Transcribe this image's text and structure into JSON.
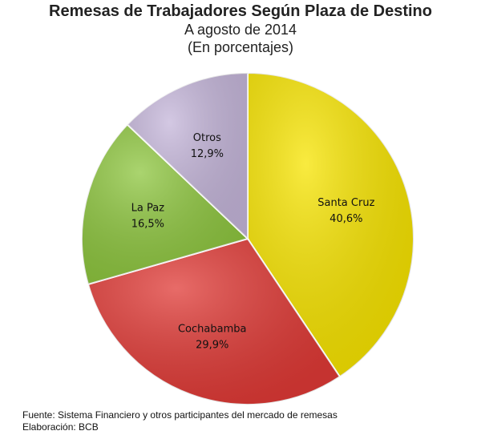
{
  "title": "Remesas de Trabajadores Según Plaza de Destino",
  "subtitle": "A agosto de 2014",
  "unit_note": "(En porcentajes)",
  "chart_data": {
    "type": "pie",
    "title": "Remesas de Trabajadores Según Plaza de Destino",
    "subtitle": "A agosto de 2014",
    "unit": "(En porcentajes)",
    "slices": [
      {
        "label": "Santa Cruz",
        "value": 40.6,
        "display": "40,6%",
        "color": "#f7e400"
      },
      {
        "label": "Cochabamba",
        "value": 29.9,
        "display": "29,9%",
        "color": "#e03a36"
      },
      {
        "label": "La Paz",
        "value": 16.5,
        "display": "16,5%",
        "color": "#8ec63f"
      },
      {
        "label": "Otros",
        "value": 12.9,
        "display": "12,9%",
        "color": "#c5b6da"
      }
    ],
    "start": "top",
    "direction": "clockwise",
    "legend": "none"
  },
  "footer": {
    "source": "Fuente: Sistema Financiero y otros participantes del mercado de remesas",
    "elaboration": "Elaboración: BCB"
  }
}
